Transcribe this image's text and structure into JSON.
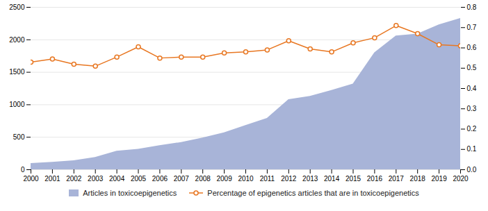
{
  "chart_data": {
    "type": "area",
    "x": [
      2000,
      2001,
      2002,
      2003,
      2004,
      2005,
      2006,
      2007,
      2008,
      2009,
      2010,
      2011,
      2012,
      2013,
      2014,
      2015,
      2016,
      2017,
      2018,
      2019,
      2020
    ],
    "xlim": [
      2000,
      2020
    ],
    "xticks": [
      2000,
      2001,
      2002,
      2003,
      2004,
      2005,
      2006,
      2007,
      2008,
      2009,
      2010,
      2011,
      2012,
      2013,
      2014,
      2015,
      2016,
      2017,
      2018,
      2019,
      2020
    ],
    "ylim": [
      0,
      2500
    ],
    "yticks": [
      0,
      500,
      1000,
      1500,
      2000,
      2500
    ],
    "y2lim": [
      0.0,
      0.8
    ],
    "y2ticks": [
      {
        "value": 0.0,
        "label": "0.0"
      },
      0.1,
      0.2,
      0.3,
      0.4,
      0.5,
      0.6,
      0.7,
      0.8
    ],
    "grid": true,
    "legend": "bottom",
    "series": [
      {
        "name": "Articles in toxicoepigenetics",
        "type": "area",
        "color": "#a8b4d8",
        "values": [
          95,
          115,
          140,
          190,
          285,
          315,
          370,
          420,
          490,
          570,
          680,
          790,
          1080,
          1130,
          1220,
          1320,
          1800,
          2060,
          2090,
          2230,
          2330
        ]
      },
      {
        "name": "Percentage of epigenetics articles that are in toxicoepigenetics",
        "type": "line",
        "axis": "y2",
        "color": "#e87722",
        "marker": "circle",
        "values": [
          0.53,
          0.545,
          0.52,
          0.51,
          0.555,
          0.605,
          0.55,
          0.555,
          0.555,
          0.575,
          0.58,
          0.59,
          0.635,
          0.595,
          0.58,
          0.625,
          0.65,
          0.71,
          0.67,
          0.615,
          0.61
        ]
      }
    ]
  }
}
